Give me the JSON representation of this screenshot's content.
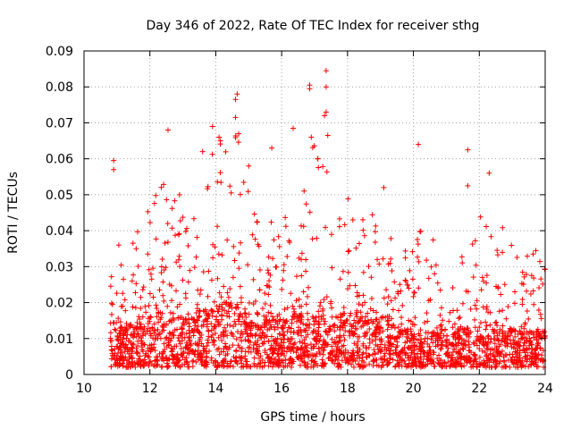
{
  "chart_data": {
    "type": "scatter",
    "title": "Day 346 of 2022, Rate Of TEC Index for receiver sthg",
    "xlabel": "GPS time / hours",
    "ylabel": "ROTI / TECUs",
    "xlim": [
      10,
      24
    ],
    "ylim": [
      0,
      0.09
    ],
    "xticks": [
      10,
      12,
      14,
      16,
      18,
      20,
      22,
      24
    ],
    "yticks": [
      0,
      0.01,
      0.02,
      0.03,
      0.04,
      0.05,
      0.06,
      0.07,
      0.08,
      0.09
    ],
    "xtick_labels": [
      "10",
      "12",
      "14",
      "16",
      "18",
      "20",
      "22",
      "24"
    ],
    "ytick_labels": [
      "0",
      "0.01",
      "0.02",
      "0.03",
      "0.04",
      "0.05",
      "0.06",
      "0.07",
      "0.08",
      "0.09"
    ],
    "grid": true,
    "marker": "+",
    "color": "#ff0000",
    "series": [
      {
        "name": "ROTI",
        "envelope": {
          "x": [
            10.8,
            11.2,
            11.6,
            12.0,
            12.4,
            12.8,
            13.2,
            13.6,
            14.0,
            14.4,
            14.8,
            15.2,
            15.6,
            16.0,
            16.4,
            16.8,
            17.2,
            17.6,
            18.0,
            18.4,
            18.8,
            19.2,
            19.6,
            20.0,
            20.4,
            20.8,
            21.2,
            21.6,
            22.0,
            22.4,
            22.8,
            23.2,
            23.6,
            24.0
          ],
          "y_min": [
            0.002,
            0.002,
            0.002,
            0.002,
            0.002,
            0.002,
            0.002,
            0.002,
            0.002,
            0.002,
            0.002,
            0.002,
            0.002,
            0.002,
            0.002,
            0.002,
            0.002,
            0.002,
            0.002,
            0.002,
            0.002,
            0.002,
            0.002,
            0.002,
            0.002,
            0.002,
            0.002,
            0.002,
            0.002,
            0.002,
            0.002,
            0.002,
            0.002,
            0.002
          ],
          "y_core": [
            0.014,
            0.013,
            0.013,
            0.016,
            0.017,
            0.016,
            0.015,
            0.017,
            0.02,
            0.02,
            0.018,
            0.016,
            0.015,
            0.015,
            0.016,
            0.017,
            0.016,
            0.016,
            0.016,
            0.016,
            0.015,
            0.014,
            0.013,
            0.012,
            0.012,
            0.012,
            0.011,
            0.012,
            0.013,
            0.014,
            0.013,
            0.012,
            0.012,
            0.012
          ],
          "y_max": [
            0.04,
            0.037,
            0.039,
            0.05,
            0.055,
            0.05,
            0.045,
            0.06,
            0.065,
            0.065,
            0.07,
            0.05,
            0.045,
            0.045,
            0.05,
            0.065,
            0.07,
            0.05,
            0.05,
            0.045,
            0.045,
            0.04,
            0.035,
            0.04,
            0.04,
            0.035,
            0.03,
            0.035,
            0.045,
            0.05,
            0.04,
            0.035,
            0.035,
            0.04
          ]
        },
        "outliers": [
          [
            10.9,
            0.0595
          ],
          [
            10.9,
            0.057
          ],
          [
            12.55,
            0.068
          ],
          [
            13.9,
            0.069
          ],
          [
            14.65,
            0.078
          ],
          [
            14.6,
            0.0765
          ],
          [
            14.6,
            0.0715
          ],
          [
            14.1,
            0.066
          ],
          [
            15.7,
            0.063
          ],
          [
            16.85,
            0.0805
          ],
          [
            16.85,
            0.0795
          ],
          [
            17.35,
            0.0845
          ],
          [
            17.35,
            0.08
          ],
          [
            17.35,
            0.073
          ],
          [
            17.3,
            0.072
          ],
          [
            17.4,
            0.0665
          ],
          [
            16.35,
            0.0685
          ],
          [
            16.9,
            0.066
          ],
          [
            17.1,
            0.06
          ],
          [
            20.15,
            0.064
          ],
          [
            21.65,
            0.0625
          ],
          [
            21.65,
            0.0525
          ],
          [
            22.3,
            0.056
          ],
          [
            19.1,
            0.052
          ],
          [
            12.9,
            0.05
          ],
          [
            13.6,
            0.062
          ],
          [
            15.0,
            0.058
          ]
        ]
      }
    ]
  }
}
